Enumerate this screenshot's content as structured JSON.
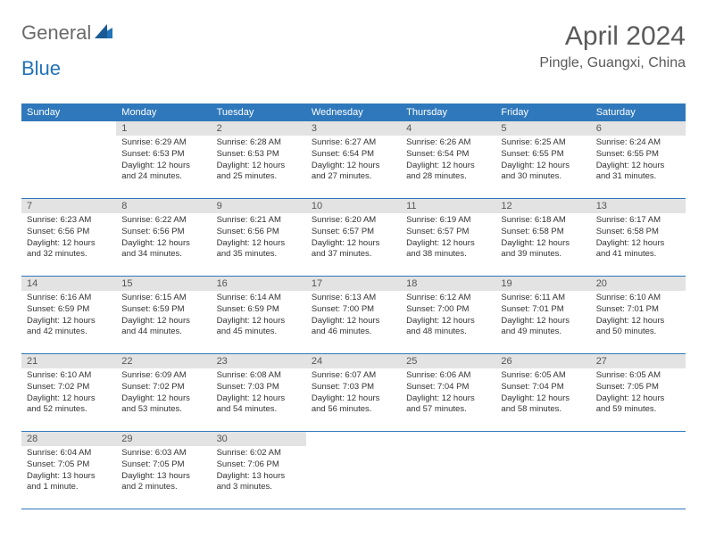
{
  "logo": {
    "part1": "General",
    "part2": "Blue"
  },
  "title": "April 2024",
  "location": "Pingle, Guangxi, China",
  "colors": {
    "header_bg": "#2f78bb",
    "header_fg": "#ffffff",
    "daynum_bg": "#e3e3e3",
    "border": "#2f78bb",
    "logo_gray": "#6a6a6a",
    "logo_blue": "#2273b8"
  },
  "weekdays": [
    "Sunday",
    "Monday",
    "Tuesday",
    "Wednesday",
    "Thursday",
    "Friday",
    "Saturday"
  ],
  "days": {
    "1": {
      "sunrise": "Sunrise: 6:29 AM",
      "sunset": "Sunset: 6:53 PM",
      "daylight": "Daylight: 12 hours and 24 minutes."
    },
    "2": {
      "sunrise": "Sunrise: 6:28 AM",
      "sunset": "Sunset: 6:53 PM",
      "daylight": "Daylight: 12 hours and 25 minutes."
    },
    "3": {
      "sunrise": "Sunrise: 6:27 AM",
      "sunset": "Sunset: 6:54 PM",
      "daylight": "Daylight: 12 hours and 27 minutes."
    },
    "4": {
      "sunrise": "Sunrise: 6:26 AM",
      "sunset": "Sunset: 6:54 PM",
      "daylight": "Daylight: 12 hours and 28 minutes."
    },
    "5": {
      "sunrise": "Sunrise: 6:25 AM",
      "sunset": "Sunset: 6:55 PM",
      "daylight": "Daylight: 12 hours and 30 minutes."
    },
    "6": {
      "sunrise": "Sunrise: 6:24 AM",
      "sunset": "Sunset: 6:55 PM",
      "daylight": "Daylight: 12 hours and 31 minutes."
    },
    "7": {
      "sunrise": "Sunrise: 6:23 AM",
      "sunset": "Sunset: 6:56 PM",
      "daylight": "Daylight: 12 hours and 32 minutes."
    },
    "8": {
      "sunrise": "Sunrise: 6:22 AM",
      "sunset": "Sunset: 6:56 PM",
      "daylight": "Daylight: 12 hours and 34 minutes."
    },
    "9": {
      "sunrise": "Sunrise: 6:21 AM",
      "sunset": "Sunset: 6:56 PM",
      "daylight": "Daylight: 12 hours and 35 minutes."
    },
    "10": {
      "sunrise": "Sunrise: 6:20 AM",
      "sunset": "Sunset: 6:57 PM",
      "daylight": "Daylight: 12 hours and 37 minutes."
    },
    "11": {
      "sunrise": "Sunrise: 6:19 AM",
      "sunset": "Sunset: 6:57 PM",
      "daylight": "Daylight: 12 hours and 38 minutes."
    },
    "12": {
      "sunrise": "Sunrise: 6:18 AM",
      "sunset": "Sunset: 6:58 PM",
      "daylight": "Daylight: 12 hours and 39 minutes."
    },
    "13": {
      "sunrise": "Sunrise: 6:17 AM",
      "sunset": "Sunset: 6:58 PM",
      "daylight": "Daylight: 12 hours and 41 minutes."
    },
    "14": {
      "sunrise": "Sunrise: 6:16 AM",
      "sunset": "Sunset: 6:59 PM",
      "daylight": "Daylight: 12 hours and 42 minutes."
    },
    "15": {
      "sunrise": "Sunrise: 6:15 AM",
      "sunset": "Sunset: 6:59 PM",
      "daylight": "Daylight: 12 hours and 44 minutes."
    },
    "16": {
      "sunrise": "Sunrise: 6:14 AM",
      "sunset": "Sunset: 6:59 PM",
      "daylight": "Daylight: 12 hours and 45 minutes."
    },
    "17": {
      "sunrise": "Sunrise: 6:13 AM",
      "sunset": "Sunset: 7:00 PM",
      "daylight": "Daylight: 12 hours and 46 minutes."
    },
    "18": {
      "sunrise": "Sunrise: 6:12 AM",
      "sunset": "Sunset: 7:00 PM",
      "daylight": "Daylight: 12 hours and 48 minutes."
    },
    "19": {
      "sunrise": "Sunrise: 6:11 AM",
      "sunset": "Sunset: 7:01 PM",
      "daylight": "Daylight: 12 hours and 49 minutes."
    },
    "20": {
      "sunrise": "Sunrise: 6:10 AM",
      "sunset": "Sunset: 7:01 PM",
      "daylight": "Daylight: 12 hours and 50 minutes."
    },
    "21": {
      "sunrise": "Sunrise: 6:10 AM",
      "sunset": "Sunset: 7:02 PM",
      "daylight": "Daylight: 12 hours and 52 minutes."
    },
    "22": {
      "sunrise": "Sunrise: 6:09 AM",
      "sunset": "Sunset: 7:02 PM",
      "daylight": "Daylight: 12 hours and 53 minutes."
    },
    "23": {
      "sunrise": "Sunrise: 6:08 AM",
      "sunset": "Sunset: 7:03 PM",
      "daylight": "Daylight: 12 hours and 54 minutes."
    },
    "24": {
      "sunrise": "Sunrise: 6:07 AM",
      "sunset": "Sunset: 7:03 PM",
      "daylight": "Daylight: 12 hours and 56 minutes."
    },
    "25": {
      "sunrise": "Sunrise: 6:06 AM",
      "sunset": "Sunset: 7:04 PM",
      "daylight": "Daylight: 12 hours and 57 minutes."
    },
    "26": {
      "sunrise": "Sunrise: 6:05 AM",
      "sunset": "Sunset: 7:04 PM",
      "daylight": "Daylight: 12 hours and 58 minutes."
    },
    "27": {
      "sunrise": "Sunrise: 6:05 AM",
      "sunset": "Sunset: 7:05 PM",
      "daylight": "Daylight: 12 hours and 59 minutes."
    },
    "28": {
      "sunrise": "Sunrise: 6:04 AM",
      "sunset": "Sunset: 7:05 PM",
      "daylight": "Daylight: 13 hours and 1 minute."
    },
    "29": {
      "sunrise": "Sunrise: 6:03 AM",
      "sunset": "Sunset: 7:05 PM",
      "daylight": "Daylight: 13 hours and 2 minutes."
    },
    "30": {
      "sunrise": "Sunrise: 6:02 AM",
      "sunset": "Sunset: 7:06 PM",
      "daylight": "Daylight: 13 hours and 3 minutes."
    }
  },
  "grid": [
    [
      null,
      "1",
      "2",
      "3",
      "4",
      "5",
      "6"
    ],
    [
      "7",
      "8",
      "9",
      "10",
      "11",
      "12",
      "13"
    ],
    [
      "14",
      "15",
      "16",
      "17",
      "18",
      "19",
      "20"
    ],
    [
      "21",
      "22",
      "23",
      "24",
      "25",
      "26",
      "27"
    ],
    [
      "28",
      "29",
      "30",
      null,
      null,
      null,
      null
    ]
  ]
}
